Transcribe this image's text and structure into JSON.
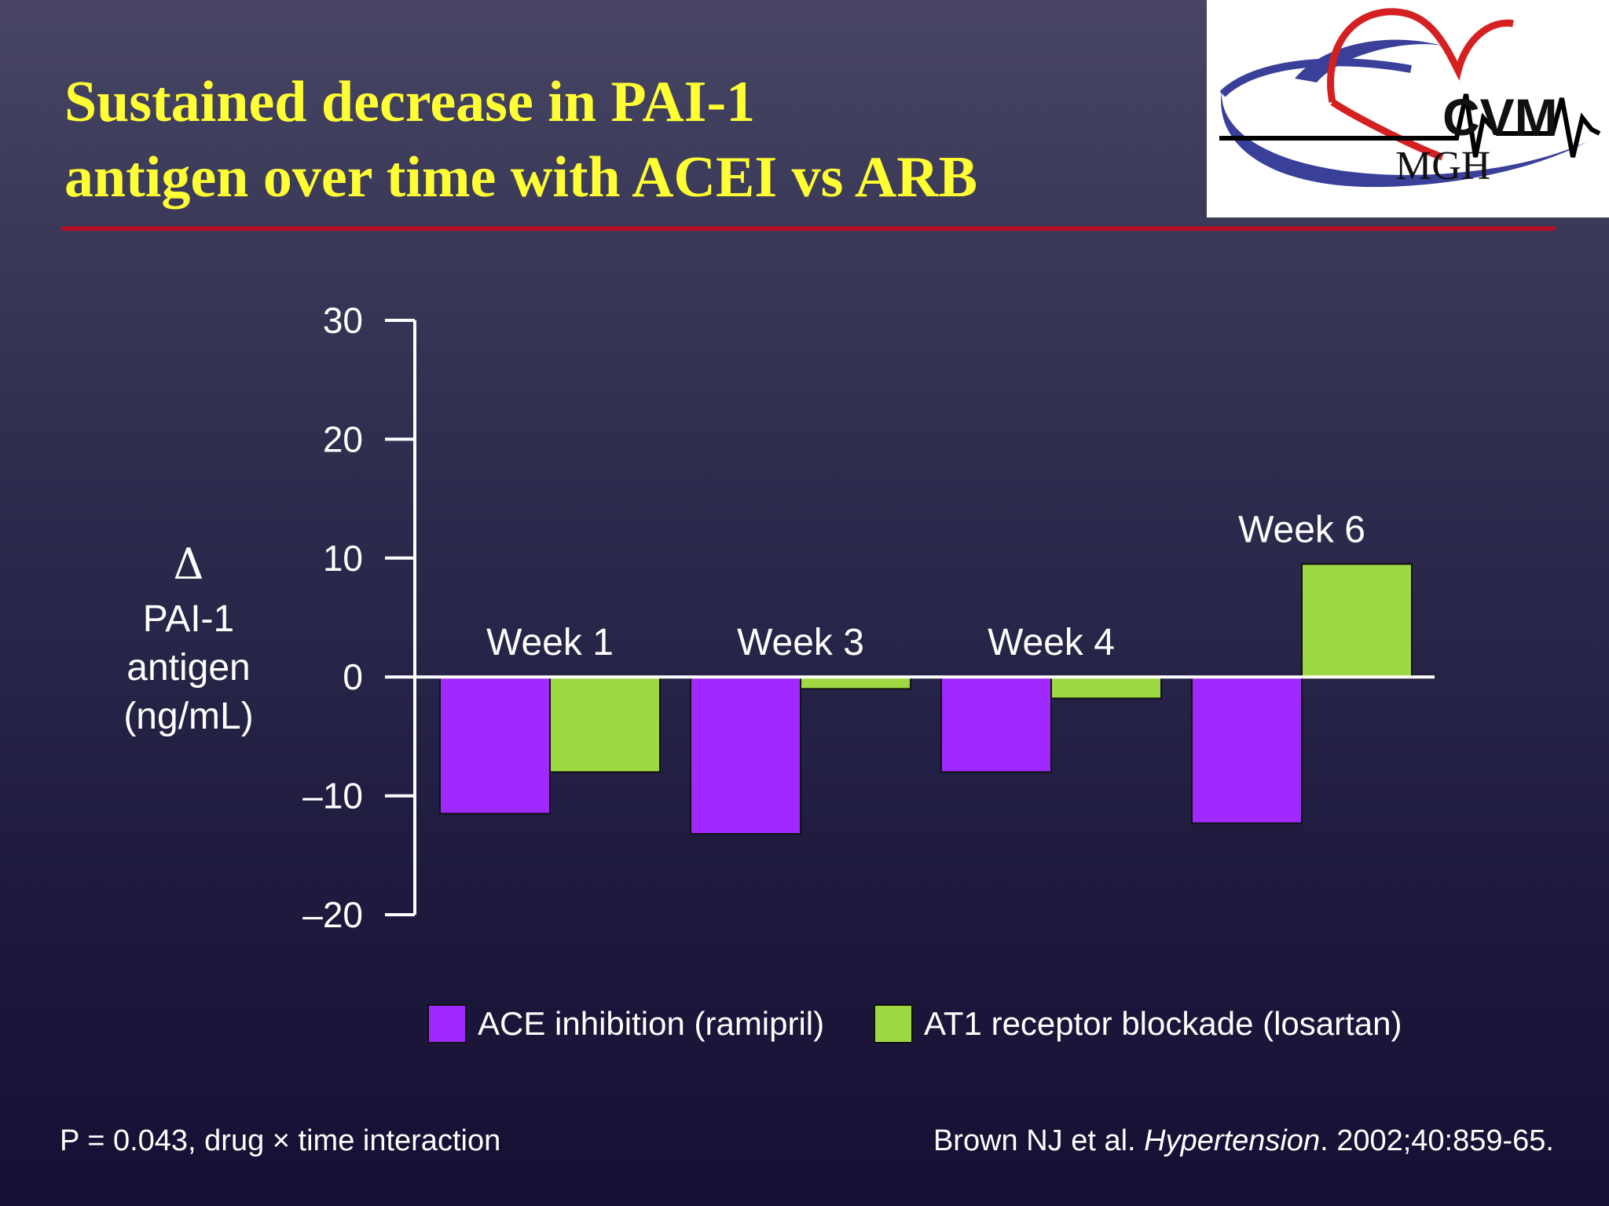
{
  "slide": {
    "title_line1": "Sustained decrease in PAI-1",
    "title_line2": "antigen over time with ACEI vs ARB",
    "accent_color": "#b0102a",
    "title_color": "#ffff33"
  },
  "logo": {
    "text_main": "CVM",
    "text_sub": "MGH"
  },
  "ylabel": {
    "symbol": "Δ",
    "line1": "PAI-1",
    "line2": "antigen",
    "line3": "(ng/mL)"
  },
  "footnotes": {
    "left": "P = 0.043, drug × time interaction",
    "right_pre": "Brown NJ et al. ",
    "right_journal": "Hypertension",
    "right_post": ". 2002;40:859-65."
  },
  "chart_data": {
    "type": "bar",
    "categories": [
      "Week 1",
      "Week 3",
      "Week 4",
      "Week 6"
    ],
    "series": [
      {
        "name": "ACE inhibition (ramipril)",
        "color": "#a029ff",
        "values": [
          -11.5,
          -13.2,
          -8.0,
          -12.3
        ]
      },
      {
        "name": "AT1 receptor blockade (losartan)",
        "color": "#9ed843",
        "values": [
          -8.0,
          -1.0,
          -1.8,
          9.5
        ]
      }
    ],
    "ylim": [
      -20,
      30
    ],
    "yticks": [
      30,
      20,
      10,
      0,
      -10,
      -20
    ],
    "ytick_labels": [
      "30",
      "20",
      "10",
      "0",
      "–10",
      "–20"
    ],
    "legend_position": "bottom",
    "grid": false
  }
}
